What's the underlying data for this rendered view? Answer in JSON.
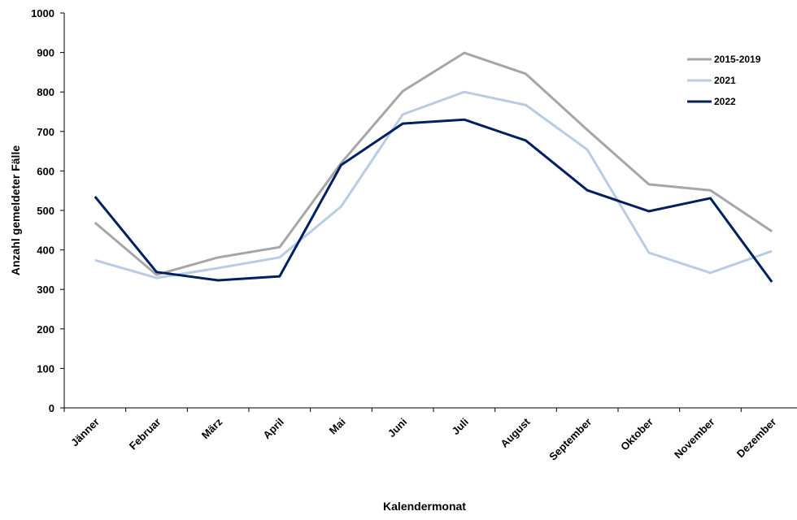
{
  "chart_data": {
    "type": "line",
    "x_label": "Kalendermonat",
    "y_label": "Anzahl gemeldeter Fälle",
    "categories": [
      "Jänner",
      "Februar",
      "März",
      "April",
      "Mai",
      "Juni",
      "Juli",
      "August",
      "September",
      "Oktober",
      "November",
      "Dezember"
    ],
    "series": [
      {
        "name": "2015-2019",
        "color": "#a6a6a6",
        "values": [
          469,
          337,
          381,
          407,
          620,
          802,
          899,
          846,
          704,
          566,
          551,
          447
        ]
      },
      {
        "name": "2021",
        "color": "#b8cce4",
        "values": [
          374,
          329,
          354,
          381,
          510,
          743,
          800,
          767,
          654,
          393,
          342,
          397
        ]
      },
      {
        "name": "2022",
        "color": "#002060",
        "values": [
          535,
          344,
          323,
          333,
          615,
          720,
          730,
          677,
          551,
          498,
          531,
          319
        ]
      }
    ],
    "ylim": [
      0,
      1000
    ],
    "yticks": [
      0,
      100,
      200,
      300,
      400,
      500,
      600,
      700,
      800,
      900,
      1000
    ],
    "legend": "upper right"
  }
}
